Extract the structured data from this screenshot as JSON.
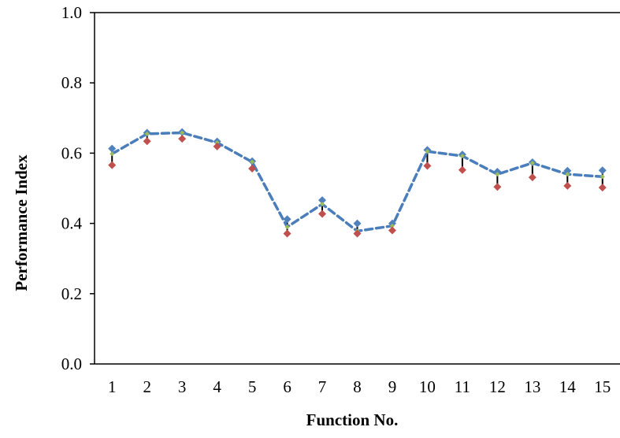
{
  "chart_data": {
    "type": "line",
    "title": "",
    "xlabel": "Function No.",
    "ylabel": "Performance Index",
    "x": [
      1,
      2,
      3,
      4,
      5,
      6,
      7,
      8,
      9,
      10,
      11,
      12,
      13,
      14,
      15
    ],
    "x_tick_labels": [
      "1",
      "2",
      "3",
      "4",
      "5",
      "6",
      "7",
      "8",
      "9",
      "10",
      "11",
      "12",
      "13",
      "14",
      "15"
    ],
    "y_tick_labels": [
      "0.0",
      "0.2",
      "0.4",
      "0.6",
      "0.8",
      "1.0"
    ],
    "y_ticks": [
      0.0,
      0.2,
      0.4,
      0.6,
      0.8,
      1.0
    ],
    "ylim": [
      0.0,
      1.0
    ],
    "xlim": [
      0.5,
      15.5
    ],
    "grid": false,
    "legend": "none",
    "series": [
      {
        "role": "upper",
        "marker": "diamond",
        "color": "#4f81bd",
        "values": [
          0.613,
          0.658,
          0.66,
          0.633,
          0.577,
          0.412,
          0.466,
          0.4,
          0.4,
          0.609,
          0.596,
          0.547,
          0.574,
          0.55,
          0.551
        ]
      },
      {
        "role": "mean",
        "line": "dashed",
        "color": "#4a7ebb",
        "marker_color": "#9bbb59",
        "values": [
          0.598,
          0.655,
          0.658,
          0.63,
          0.575,
          0.39,
          0.455,
          0.378,
          0.393,
          0.605,
          0.592,
          0.54,
          0.572,
          0.54,
          0.533
        ]
      },
      {
        "role": "lower",
        "marker": "diamond",
        "color": "#c0504d",
        "values": [
          0.566,
          0.634,
          0.641,
          0.619,
          0.556,
          0.371,
          0.427,
          0.371,
          0.38,
          0.564,
          0.552,
          0.504,
          0.531,
          0.507,
          0.502
        ]
      }
    ],
    "error_bar_color": "#000000"
  }
}
